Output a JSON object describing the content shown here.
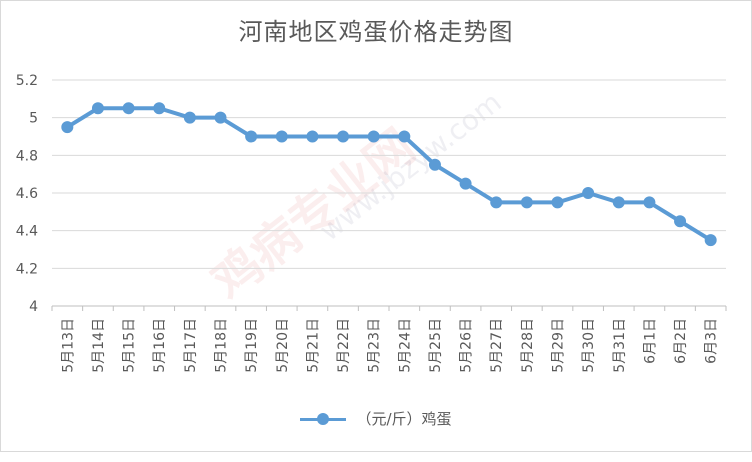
{
  "chart_data": {
    "type": "line",
    "title": "河南地区鸡蛋价格走势图",
    "categories": [
      "5月13日",
      "5月14日",
      "5月15日",
      "5月16日",
      "5月17日",
      "5月18日",
      "5月19日",
      "5月20日",
      "5月21日",
      "5月22日",
      "5月23日",
      "5月24日",
      "5月25日",
      "5月26日",
      "5月27日",
      "5月28日",
      "5月29日",
      "5月30日",
      "5月31日",
      "6月1日",
      "6月2日",
      "6月3日"
    ],
    "series": [
      {
        "name": "（元/斤）鸡蛋",
        "color": "#5b9bd5",
        "values": [
          4.95,
          5.05,
          5.05,
          5.05,
          5.0,
          5.0,
          4.9,
          4.9,
          4.9,
          4.9,
          4.9,
          4.9,
          4.75,
          4.65,
          4.55,
          4.55,
          4.55,
          4.6,
          4.55,
          4.55,
          4.45,
          4.35
        ]
      }
    ],
    "y_ticks": [
      "5.2",
      "5",
      "4.8",
      "4.6",
      "4.4",
      "4.2",
      "4"
    ],
    "ylim": [
      4,
      5.2
    ],
    "grid": true,
    "legend_position": "bottom",
    "xlabel": "",
    "ylabel": ""
  },
  "watermark": {
    "text": "鸡病专业网",
    "url": "www.jbzyw.com"
  }
}
